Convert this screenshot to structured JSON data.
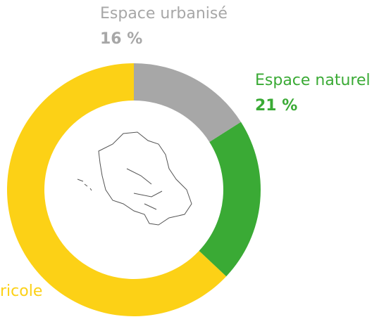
{
  "chart_data": {
    "type": "donut",
    "categories": [
      "Espace urbanisé",
      "Espace naturel",
      "ricole"
    ],
    "values": [
      16,
      21,
      63
    ],
    "value_labels": [
      "16 %",
      "21 %",
      null
    ],
    "colors": [
      "#a7a7a7",
      "#3aaa35",
      "#fcd116"
    ]
  }
}
